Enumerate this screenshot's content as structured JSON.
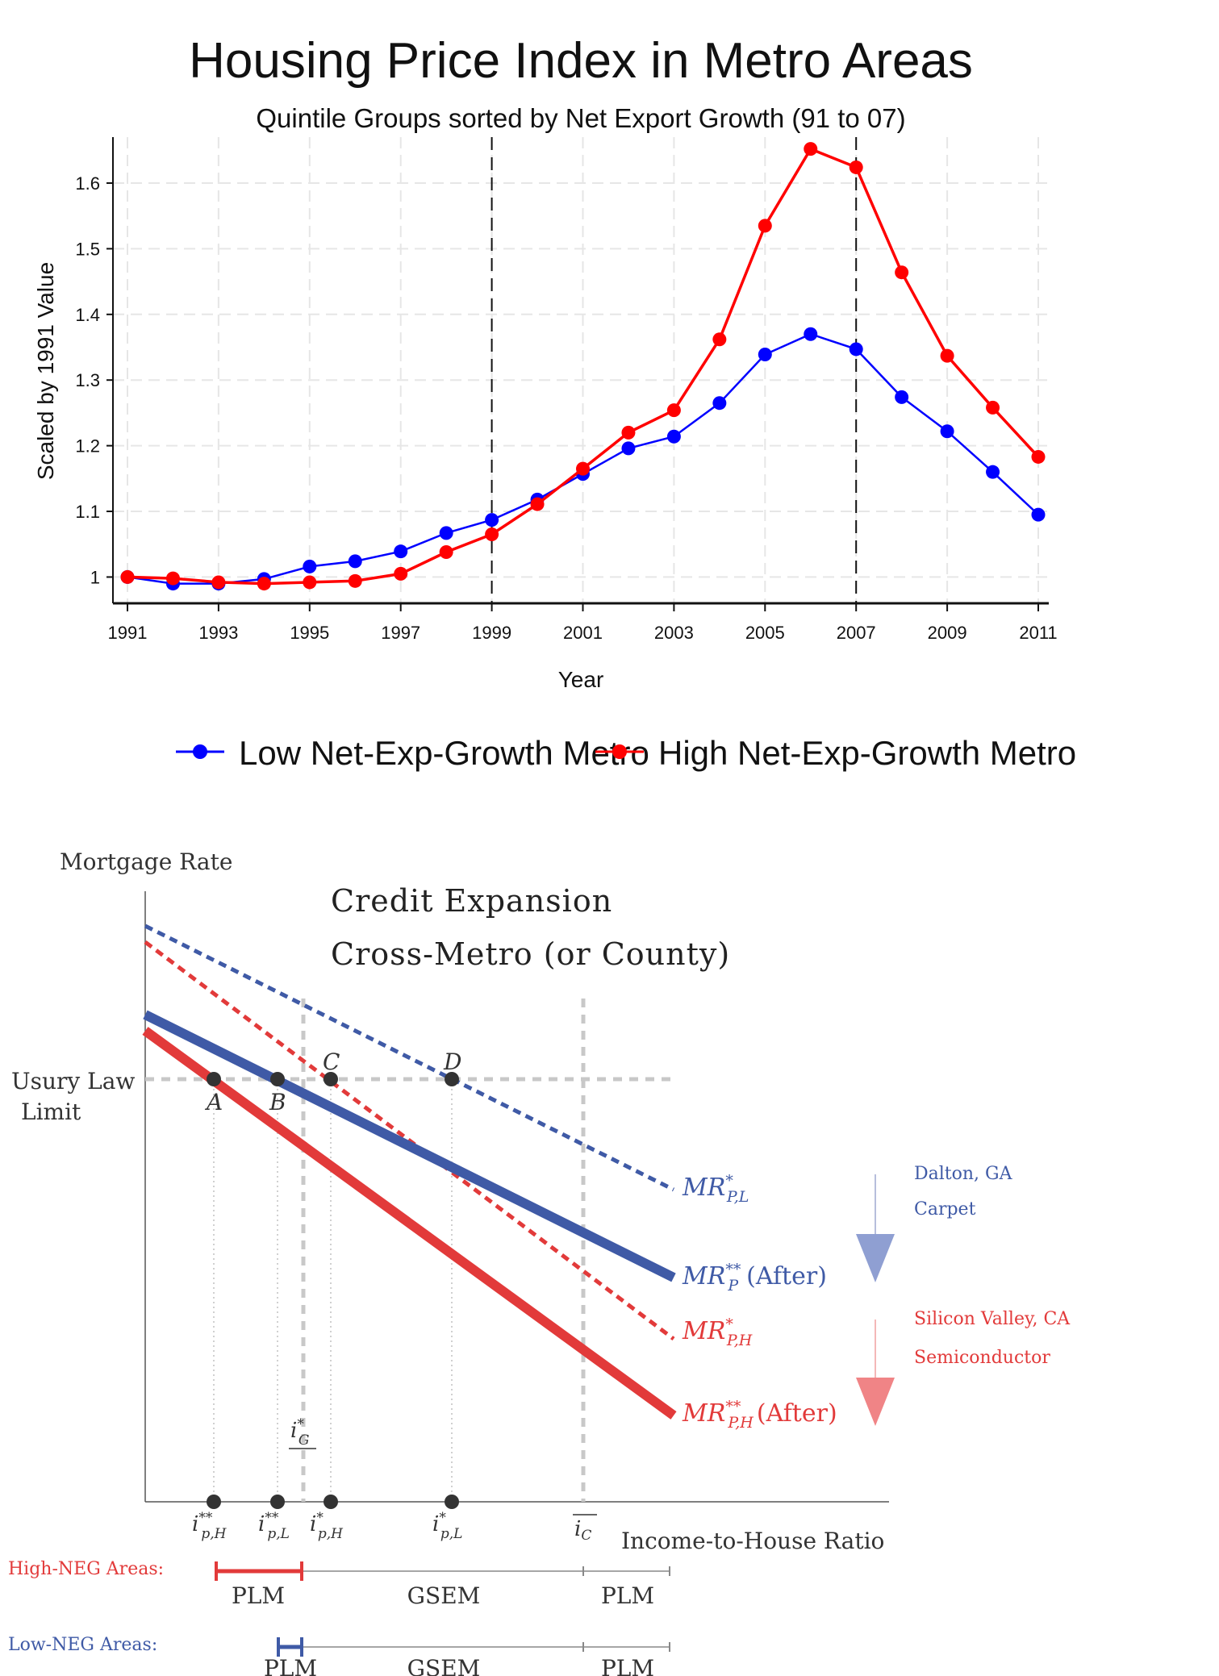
{
  "chart_data": [
    {
      "type": "line",
      "title": "Housing Price Index in Metro Areas",
      "subtitle": "Quintile Groups sorted by Net Export Growth (91 to 07)",
      "xlabel": "Year",
      "ylabel": "Scaled by 1991 Value",
      "xlim": [
        1991,
        2011
      ],
      "ylim": [
        0.96,
        1.67
      ],
      "x_ticks": [
        1991,
        1993,
        1995,
        1997,
        1999,
        2001,
        2003,
        2005,
        2007,
        2009,
        2011
      ],
      "y_ticks": [
        1,
        1.1,
        1.2,
        1.3,
        1.4,
        1.5,
        1.6
      ],
      "grid": true,
      "vertical_reference_lines": [
        1999,
        2007
      ],
      "legend_position": "bottom",
      "x": [
        1991,
        1992,
        1993,
        1994,
        1995,
        1996,
        1997,
        1998,
        1999,
        2000,
        2001,
        2002,
        2003,
        2004,
        2005,
        2006,
        2007,
        2008,
        2009,
        2010,
        2011
      ],
      "series": [
        {
          "name": "Low Net-Exp-Growth Metro",
          "color": "#0000ff",
          "values": [
            1.0,
            0.99,
            0.99,
            0.997,
            1.016,
            1.024,
            1.039,
            1.067,
            1.087,
            1.118,
            1.157,
            1.196,
            1.214,
            1.265,
            1.339,
            1.37,
            1.347,
            1.274,
            1.222,
            1.16,
            1.095
          ]
        },
        {
          "name": "High Net-Exp-Growth Metro",
          "color": "#ff0000",
          "values": [
            1.0,
            0.998,
            0.992,
            0.99,
            0.992,
            0.994,
            1.005,
            1.038,
            1.065,
            1.111,
            1.165,
            1.22,
            1.254,
            1.362,
            1.535,
            1.652,
            1.624,
            1.464,
            1.337,
            1.258,
            1.183
          ]
        }
      ]
    }
  ],
  "diagram": {
    "y_axis_label": "Mortgage Rate",
    "title_line1": "Credit Expansion",
    "title_line2": "Cross-Metro (or County)",
    "usury_line1": "Usury Law",
    "usury_line2": "Limit",
    "x_axis_label": "Income-to-House Ratio",
    "points": {
      "a": "A",
      "b": "B",
      "c": "C",
      "d": "D"
    },
    "curves": {
      "mr_pl": {
        "base": "MR",
        "sup": "*",
        "sub": "P,L"
      },
      "mr_p_after": {
        "base": "MR",
        "sup": "**",
        "sub": "P",
        "suffix": "(After)"
      },
      "mr_ph": {
        "base": "MR",
        "sup": "*",
        "sub": "P,H"
      },
      "mr_ph_after": {
        "base": "MR",
        "sup": "**",
        "sub": "P,H",
        "suffix": "(After)"
      }
    },
    "x_markers": {
      "i_pH_2": {
        "base": "i",
        "sup": "**",
        "sub": "p,H"
      },
      "i_pL_2": {
        "base": "i",
        "sup": "**",
        "sub": "p,L"
      },
      "i_pH_1": {
        "base": "i",
        "sup": "*",
        "sub": "p,H"
      },
      "i_pL_1": {
        "base": "i",
        "sup": "*",
        "sub": "p,L"
      },
      "i_C": {
        "base": "i",
        "sub": "C"
      },
      "i_G": {
        "base": "i",
        "sup": "*",
        "sub": "G"
      }
    },
    "low_example": {
      "line1": "Dalton, GA",
      "line2": "Carpet"
    },
    "high_example": {
      "line1": "Silicon Valley, CA",
      "line2": "Semiconductor"
    },
    "high_neg": {
      "label": "High-NEG Areas:",
      "seg1": "PLM",
      "seg2": "GSEM",
      "seg3": "PLM"
    },
    "low_neg": {
      "label": "Low-NEG Areas:",
      "seg1": "PLM",
      "seg2": "GSEM",
      "seg3": "PLM"
    },
    "colors": {
      "blue": "#3f5aa6",
      "red": "#e23a3a",
      "light_blue": "#8f9fd2",
      "light_red": "#f08486",
      "grid_gray": "#c8c8c8"
    }
  }
}
